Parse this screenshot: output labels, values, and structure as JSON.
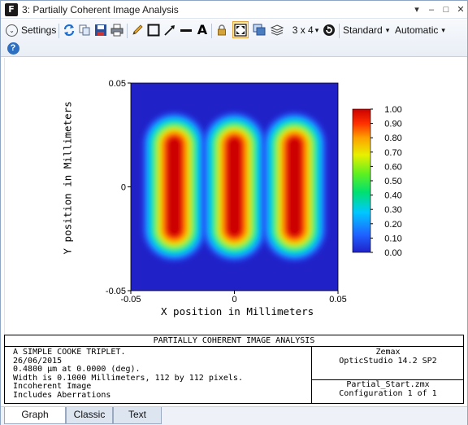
{
  "window": {
    "app_icon_letter": "F",
    "title": "3: Partially Coherent Image Analysis",
    "controls": [
      "▾",
      "–",
      "□",
      "✕"
    ]
  },
  "toolbar": {
    "settings_label": "Settings",
    "layout_label": "3 x 4",
    "layout_chevron": "▾",
    "standard_label": "Standard",
    "standard_chevron": "▾",
    "automatic_label": "Automatic",
    "automatic_chevron": "▾",
    "text_tool_glyph": "A",
    "help_glyph": "?",
    "icons": [
      "settings-chevron-icon",
      "refresh-icon",
      "copy-icon",
      "save-icon",
      "print-icon",
      "pencil-icon",
      "rectangle-icon",
      "arrow-line-icon",
      "line-icon",
      "text-icon",
      "lock-icon",
      "normalize-icon",
      "window-clone-icon",
      "layers-icon",
      "rotate-icon",
      "help-icon"
    ]
  },
  "colors": {
    "accent": "#2d6fc1",
    "title_bar": "#ffffff",
    "toolbar_top": "#f7f9fc",
    "toolbar_bottom": "#e9eef6"
  },
  "chart_data": {
    "type": "heatmap",
    "title": "",
    "xlabel": "X position in Millimeters",
    "ylabel": "Y position in Millimeters",
    "xlim": [
      -0.05,
      0.05
    ],
    "ylim": [
      -0.05,
      0.05
    ],
    "x_ticks": [
      "-0.05",
      "0",
      "0.05"
    ],
    "y_ticks": [
      "0.05",
      "0",
      "-0.05"
    ],
    "colorbar": {
      "range": [
        0.0,
        1.0
      ],
      "ticks": [
        "1.00",
        "0.90",
        "0.80",
        "0.70",
        "0.60",
        "0.50",
        "0.40",
        "0.30",
        "0.20",
        "0.10",
        "0.00"
      ],
      "colormap": "rainbow-blue-to-red"
    },
    "features": [
      {
        "shape": "vertical-bar",
        "x_center": -0.029,
        "y_center": 0.0,
        "width": 0.007,
        "height": 0.048,
        "peak": 1.0
      },
      {
        "shape": "vertical-bar",
        "x_center": 0.0,
        "y_center": 0.0,
        "width": 0.007,
        "height": 0.048,
        "peak": 1.0
      },
      {
        "shape": "vertical-bar",
        "x_center": 0.029,
        "y_center": 0.0,
        "width": 0.007,
        "height": 0.048,
        "peak": 1.0
      }
    ]
  },
  "info": {
    "header": "PARTIALLY COHERENT IMAGE ANALYSIS",
    "left_lines": [
      "A SIMPLE COOKE TRIPLET.",
      "26/06/2015",
      "0.4800 µm at 0.0000 (deg).",
      "Width is 0.1000 Millimeters, 112 by 112 pixels.",
      "Incoherent Image",
      "Includes Aberrations"
    ],
    "right_top": [
      "Zemax",
      "OpticStudio 14.2 SP2"
    ],
    "right_bottom": [
      "Partial_Start.zmx",
      "Configuration 1 of 1"
    ]
  },
  "tabs": [
    {
      "label": "Graph",
      "active": true
    },
    {
      "label": "Classic",
      "active": false
    },
    {
      "label": "Text",
      "active": false
    }
  ]
}
